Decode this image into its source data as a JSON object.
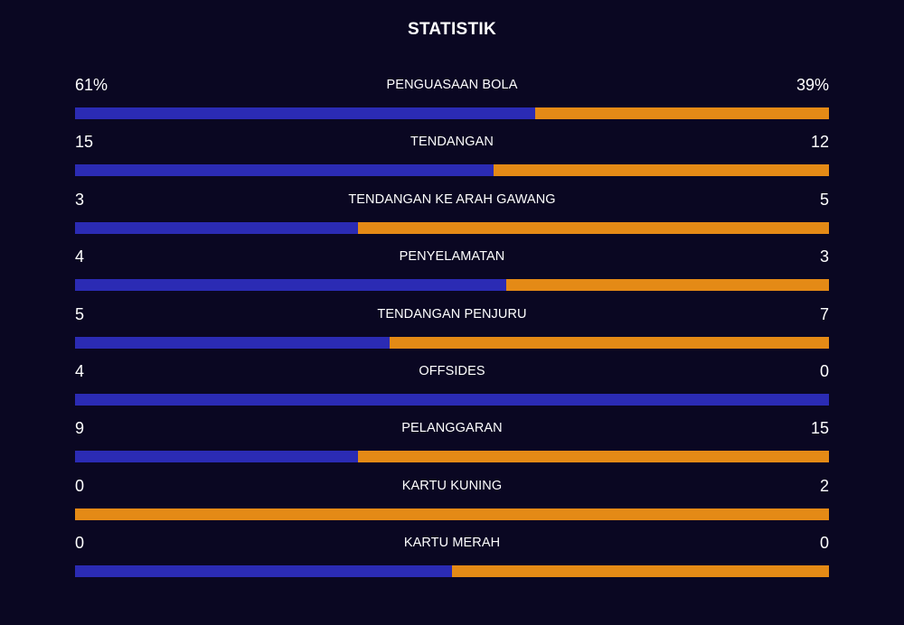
{
  "title": "STATISTIK",
  "colors": {
    "background": "#0a0722",
    "home_bar": "#2b2bb4",
    "away_bar": "#e48a16",
    "text": "#ffffff"
  },
  "stats": [
    {
      "label": "PENGUASAAN BOLA",
      "home": "61%",
      "away": "39%",
      "home_share": 0.61
    },
    {
      "label": "TENDANGAN",
      "home": "15",
      "away": "12",
      "home_share": 0.5556
    },
    {
      "label": "TENDANGAN KE ARAH GAWANG",
      "home": "3",
      "away": "5",
      "home_share": 0.375
    },
    {
      "label": "PENYELAMATAN",
      "home": "4",
      "away": "3",
      "home_share": 0.5714
    },
    {
      "label": "TENDANGAN PENJURU",
      "home": "5",
      "away": "7",
      "home_share": 0.4167
    },
    {
      "label": "OFFSIDES",
      "home": "4",
      "away": "0",
      "home_share": 1.0
    },
    {
      "label": "PELANGGARAN",
      "home": "9",
      "away": "15",
      "home_share": 0.375
    },
    {
      "label": "KARTU KUNING",
      "home": "0",
      "away": "2",
      "home_share": 0.0
    },
    {
      "label": "KARTU MERAH",
      "home": "0",
      "away": "0",
      "home_share": 0.5
    }
  ]
}
